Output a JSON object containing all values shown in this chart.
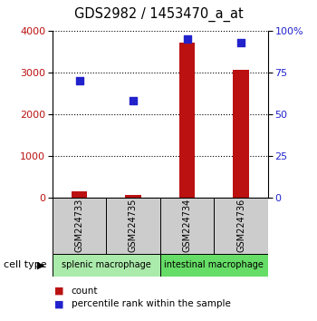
{
  "title": "GDS2982 / 1453470_a_at",
  "samples": [
    "GSM224733",
    "GSM224735",
    "GSM224734",
    "GSM224736"
  ],
  "counts": [
    150,
    50,
    3700,
    3050
  ],
  "percentiles": [
    70,
    58,
    95,
    93
  ],
  "cell_type_groups": [
    {
      "label": "splenic macrophage",
      "indices": [
        0,
        1
      ],
      "color": "#aaeaaa"
    },
    {
      "label": "intestinal macrophage",
      "indices": [
        2,
        3
      ],
      "color": "#66dd66"
    }
  ],
  "bar_color": "#bb1111",
  "scatter_color": "#2222cc",
  "sample_box_color": "#cccccc",
  "ylim_left": [
    0,
    4000
  ],
  "ylim_right": [
    0,
    100
  ],
  "yticks_left": [
    0,
    1000,
    2000,
    3000,
    4000
  ],
  "yticks_right": [
    0,
    25,
    50,
    75,
    100
  ],
  "ytick_labels_right": [
    "0",
    "25",
    "50",
    "75",
    "100%"
  ],
  "legend_labels": [
    "count",
    "percentile rank within the sample"
  ],
  "bar_width": 0.3
}
